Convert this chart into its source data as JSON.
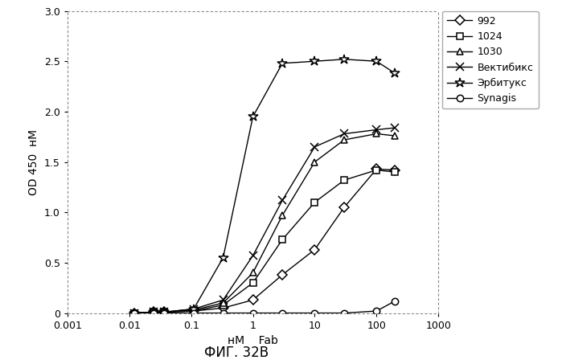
{
  "title": "ФИГ. 32B",
  "xlabel": "нМ    Fab",
  "ylabel": "OD 450  нМ",
  "ylim": [
    0,
    3
  ],
  "yticks": [
    0,
    0.5,
    1.0,
    1.5,
    2.0,
    2.5,
    3.0
  ],
  "xticks": [
    0.001,
    0.01,
    0.1,
    1,
    10,
    100,
    1000
  ],
  "xlabels": [
    "0.001",
    "0.01",
    "0.1",
    "1",
    "10",
    "100",
    "1000"
  ],
  "series": [
    {
      "label": "992",
      "marker": "D",
      "markersize": 6,
      "x": [
        0.012,
        0.025,
        0.037,
        0.11,
        0.33,
        1.0,
        3.0,
        10.0,
        30.0,
        100.0,
        200.0
      ],
      "y": [
        0.0,
        0.01,
        0.01,
        0.02,
        0.05,
        0.13,
        0.38,
        0.63,
        1.05,
        1.43,
        1.42
      ]
    },
    {
      "label": "1024",
      "marker": "s",
      "markersize": 6,
      "x": [
        0.012,
        0.025,
        0.037,
        0.11,
        0.33,
        1.0,
        3.0,
        10.0,
        30.0,
        100.0,
        200.0
      ],
      "y": [
        0.0,
        0.01,
        0.01,
        0.02,
        0.08,
        0.3,
        0.73,
        1.1,
        1.32,
        1.42,
        1.4
      ]
    },
    {
      "label": "1030",
      "marker": "^",
      "markersize": 6,
      "x": [
        0.012,
        0.025,
        0.037,
        0.11,
        0.33,
        1.0,
        3.0,
        10.0,
        30.0,
        100.0,
        200.0
      ],
      "y": [
        0.0,
        0.01,
        0.01,
        0.03,
        0.1,
        0.4,
        0.97,
        1.5,
        1.72,
        1.78,
        1.76
      ]
    },
    {
      "label": "Вектибикс",
      "marker": "x",
      "markersize": 7,
      "x": [
        0.012,
        0.025,
        0.037,
        0.11,
        0.33,
        1.0,
        3.0,
        10.0,
        30.0,
        100.0,
        200.0
      ],
      "y": [
        0.0,
        0.01,
        0.01,
        0.04,
        0.13,
        0.57,
        1.12,
        1.65,
        1.78,
        1.82,
        1.84
      ]
    },
    {
      "label": "Эрбитукс",
      "marker": "*",
      "markersize": 9,
      "x": [
        0.012,
        0.025,
        0.037,
        0.11,
        0.33,
        1.0,
        3.0,
        10.0,
        30.0,
        100.0,
        200.0
      ],
      "y": [
        0.0,
        0.01,
        0.01,
        0.04,
        0.55,
        1.95,
        2.48,
        2.5,
        2.52,
        2.5,
        2.38
      ]
    },
    {
      "label": "Synagis",
      "marker": "o",
      "markersize": 6,
      "x": [
        0.012,
        0.025,
        0.037,
        0.11,
        0.33,
        1.0,
        3.0,
        10.0,
        30.0,
        100.0,
        200.0
      ],
      "y": [
        0.0,
        0.0,
        0.0,
        0.0,
        0.0,
        0.0,
        0.0,
        0.0,
        0.0,
        0.02,
        0.12
      ]
    }
  ],
  "figure_size": [
    6.99,
    4.53
  ],
  "dpi": 100,
  "background": "#ffffff",
  "line_color": "#000000"
}
